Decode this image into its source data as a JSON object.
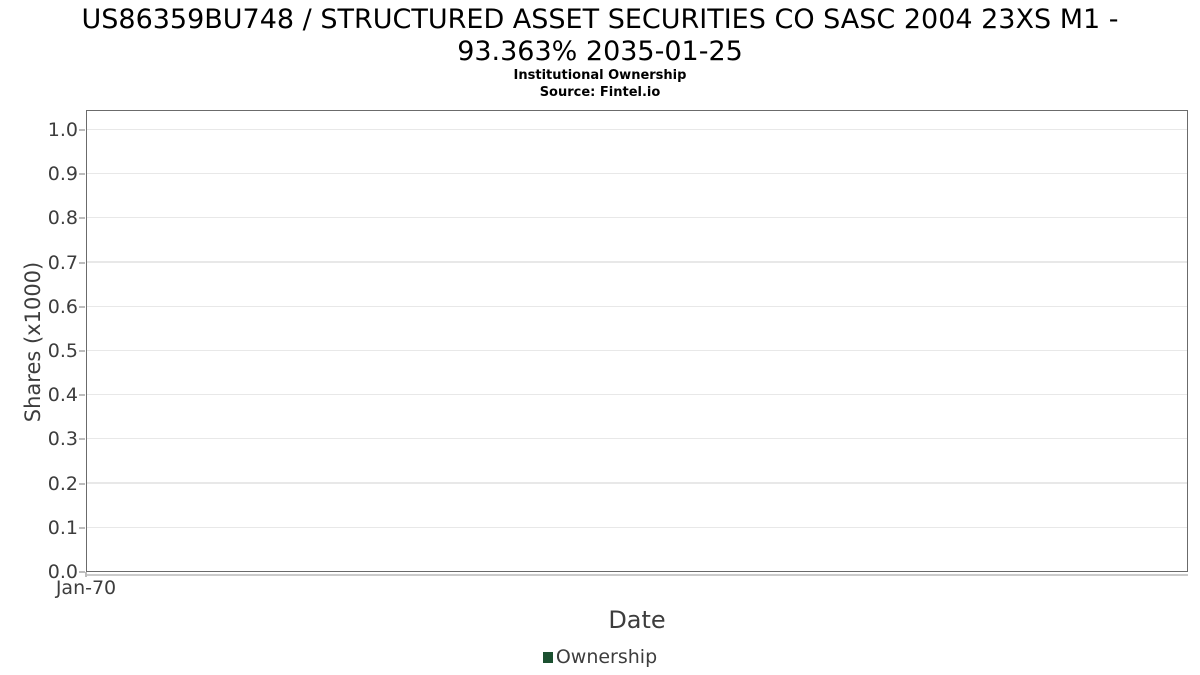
{
  "header": {
    "title": "US86359BU748 / STRUCTURED ASSET SECURITIES CO SASC 2004 23XS M1 - 93.363% 2035-01-25",
    "subtitle": "Institutional Ownership",
    "source": "Source: Fintel.io"
  },
  "chart_data": {
    "type": "line",
    "title": "US86359BU748 / STRUCTURED ASSET SECURITIES CO SASC 2004 23XS M1 - 93.363% 2035-01-25",
    "subtitle": "Institutional Ownership",
    "source": "Source: Fintel.io",
    "xlabel": "Date",
    "ylabel": "Shares (x1000)",
    "x_tick_labels": [
      "Jan-70"
    ],
    "y_tick_labels": [
      "0.0",
      "0.1",
      "0.2",
      "0.3",
      "0.4",
      "0.5",
      "0.6",
      "0.7",
      "0.8",
      "0.9",
      "1.0"
    ],
    "ylim": [
      0.0,
      1.045
    ],
    "grid": "horizontal-only",
    "legend_position": "bottom-center",
    "series": [
      {
        "name": "Ownership",
        "color": "#1b5030",
        "x": [],
        "values": []
      }
    ]
  },
  "legend": {
    "entries": [
      {
        "label": "Ownership",
        "color": "#1b5030"
      }
    ]
  },
  "colors": {
    "background": "#ffffff",
    "title_text": "#000000",
    "axis_border": "#6b6b6b",
    "x_axis_line": "#cbcbcb",
    "gridline": "#e8e8e8",
    "tick_mark": "#bdbdbd",
    "tick_text": "#3d3d3d",
    "axis_label_text": "#3d3d3d",
    "legend_marker": "#1b5030"
  }
}
